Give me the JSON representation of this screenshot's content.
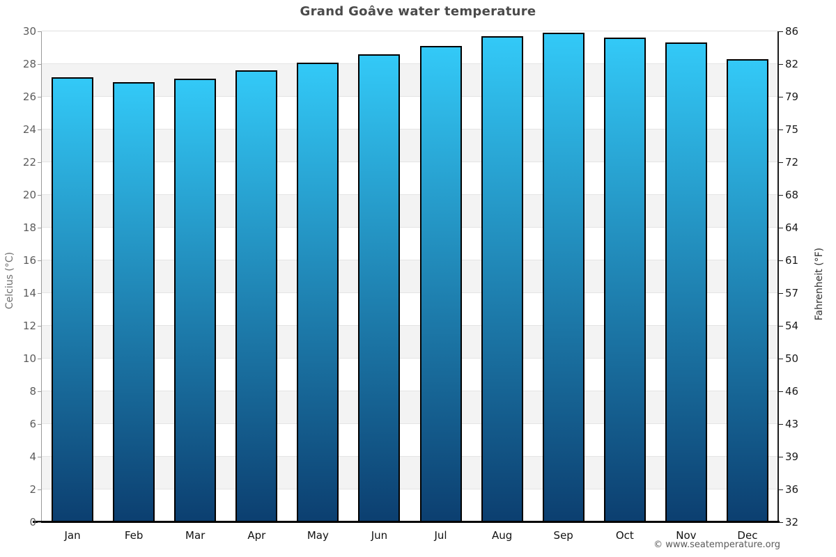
{
  "page": {
    "watermark": "© www.seatemperature.org"
  },
  "chart_data": {
    "type": "bar",
    "title": "Grand Goâve water temperature",
    "categories": [
      "Jan",
      "Feb",
      "Mar",
      "Apr",
      "May",
      "Jun",
      "Jul",
      "Aug",
      "Sep",
      "Oct",
      "Nov",
      "Dec"
    ],
    "values": [
      27.2,
      26.9,
      27.1,
      27.6,
      28.1,
      28.6,
      29.1,
      29.7,
      29.9,
      29.6,
      29.3,
      28.3
    ],
    "unit": "°C",
    "ylabel_left": "Celcius (°C)",
    "ylabel_right": "Fahrenheit (°F)",
    "ylim": [
      0,
      30
    ],
    "yticks_celsius": [
      30,
      28,
      26,
      24,
      22,
      20,
      18,
      16,
      14,
      12,
      10,
      8,
      6,
      4,
      2,
      0
    ],
    "yticks_fahrenheit": [
      86,
      82,
      79,
      75,
      72,
      68,
      64,
      61,
      57,
      54,
      50,
      46,
      43,
      39,
      36,
      32
    ],
    "xlabel": "",
    "legend": "none",
    "grid": "horizontal alternating bands every 2°C",
    "colors": {
      "bar_gradient_top": "#33c9f7",
      "bar_gradient_bottom": "#0c3f70",
      "bar_border": "#000000",
      "band_gray": "#f3f3f3",
      "gridline": "#e4e4e4",
      "title_text": "#4a4a4a"
    }
  }
}
